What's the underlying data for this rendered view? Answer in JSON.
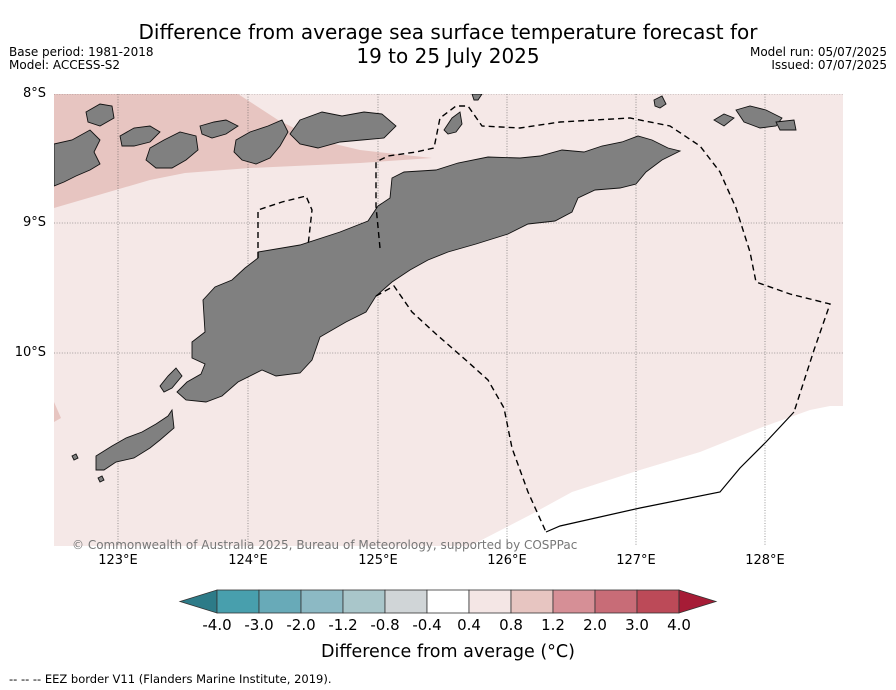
{
  "title": {
    "line1": "Difference from average sea surface temperature forecast for",
    "line2": "19 to 25 July 2025"
  },
  "meta": {
    "base_period": "Base period: 1981-2018",
    "model": "Model: ACCESS-S2",
    "model_run": "Model run: 05/07/2025",
    "issued": "Issued: 07/07/2025"
  },
  "map": {
    "lat_labels": [
      "8°S",
      "9°S",
      "10°S"
    ],
    "lon_labels": [
      "123°E",
      "124°E",
      "125°E",
      "126°E",
      "127°E",
      "128°E"
    ],
    "copyright": "© Commonwealth of Australia 2025, Bureau of Meteorology, supported by COSPPac",
    "colors": {
      "ocean_main": "#f5e8e7",
      "ocean_warm": "#e7c5c1",
      "land": "#808080",
      "neutral": "#ffffff"
    }
  },
  "colorbar": {
    "ticks": [
      "-4.0",
      "-3.0",
      "-2.0",
      "-1.2",
      "-0.8",
      "-0.4",
      "0.4",
      "0.8",
      "1.2",
      "2.0",
      "3.0",
      "4.0"
    ],
    "colors": [
      "#2d7b88",
      "#489fad",
      "#68aab8",
      "#8cb9c4",
      "#a9c6ca",
      "#d0d5d7",
      "#ffffff",
      "#f4e6e5",
      "#e7c5c1",
      "#d68f96",
      "#c86c77",
      "#bc4a58",
      "#a61c36"
    ],
    "label": "Difference from average (°C)"
  },
  "footer": "--  --  -- EEZ border V11 (Flanders Marine Institute, 2019)."
}
